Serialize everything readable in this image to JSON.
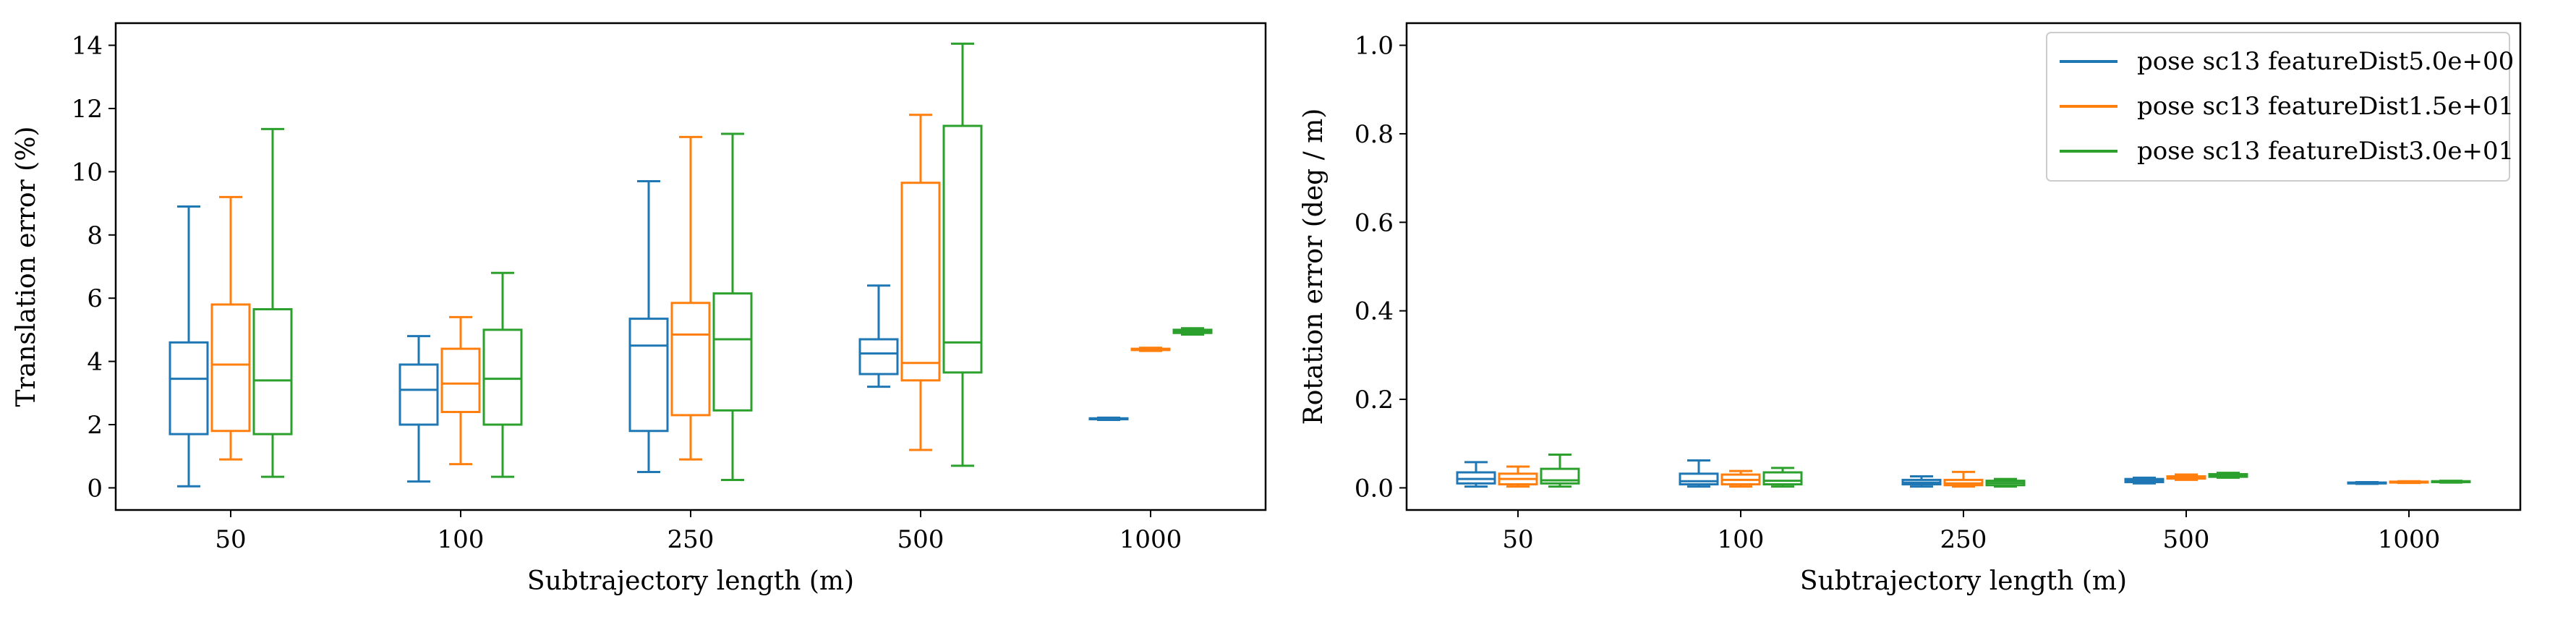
{
  "chart_data": [
    {
      "type": "box",
      "xlabel": "Subtrajectory length (m)",
      "ylabel": "Translation error (%)",
      "categories": [
        "50",
        "100",
        "250",
        "500",
        "1000"
      ],
      "ylim": [
        -0.7,
        14.7
      ],
      "yticks": [
        0,
        2,
        4,
        6,
        8,
        10,
        12,
        14
      ],
      "grid": false,
      "series": [
        {
          "color": "#1f77b4",
          "boxes": [
            {
              "whislo": 0.05,
              "q1": 1.7,
              "med": 3.45,
              "q3": 4.6,
              "whishi": 8.9
            },
            {
              "whislo": 0.2,
              "q1": 2.0,
              "med": 3.1,
              "q3": 3.9,
              "whishi": 4.8
            },
            {
              "whislo": 0.5,
              "q1": 1.8,
              "med": 4.5,
              "q3": 5.35,
              "whishi": 9.7
            },
            {
              "whislo": 3.2,
              "q1": 3.6,
              "med": 4.25,
              "q3": 4.7,
              "whishi": 6.4
            },
            {
              "whislo": 2.15,
              "q1": 2.17,
              "med": 2.18,
              "q3": 2.2,
              "whishi": 2.22
            }
          ]
        },
        {
          "color": "#ff7f0e",
          "boxes": [
            {
              "whislo": 0.9,
              "q1": 1.8,
              "med": 3.9,
              "q3": 5.8,
              "whishi": 9.2
            },
            {
              "whislo": 0.75,
              "q1": 2.4,
              "med": 3.3,
              "q3": 4.4,
              "whishi": 5.4
            },
            {
              "whislo": 0.9,
              "q1": 2.3,
              "med": 4.85,
              "q3": 5.85,
              "whishi": 11.1
            },
            {
              "whislo": 1.2,
              "q1": 3.4,
              "med": 3.95,
              "q3": 9.65,
              "whishi": 11.8
            },
            {
              "whislo": 4.33,
              "q1": 4.36,
              "med": 4.38,
              "q3": 4.4,
              "whishi": 4.43
            }
          ]
        },
        {
          "color": "#2ca02c",
          "boxes": [
            {
              "whislo": 0.35,
              "q1": 1.7,
              "med": 3.4,
              "q3": 5.65,
              "whishi": 11.35
            },
            {
              "whislo": 0.35,
              "q1": 2.0,
              "med": 3.45,
              "q3": 5.0,
              "whishi": 6.8
            },
            {
              "whislo": 0.25,
              "q1": 2.45,
              "med": 4.7,
              "q3": 6.15,
              "whishi": 11.2
            },
            {
              "whislo": 0.7,
              "q1": 3.65,
              "med": 4.6,
              "q3": 11.45,
              "whishi": 14.05
            },
            {
              "whislo": 4.85,
              "q1": 4.9,
              "med": 4.95,
              "q3": 5.0,
              "whishi": 5.05
            }
          ]
        }
      ]
    },
    {
      "type": "box",
      "xlabel": "Subtrajectory length (m)",
      "ylabel": "Rotation error (deg / m)",
      "categories": [
        "50",
        "100",
        "250",
        "500",
        "1000"
      ],
      "ylim": [
        -0.05,
        1.05
      ],
      "yticks": [
        0.0,
        0.2,
        0.4,
        0.6,
        0.8,
        1.0
      ],
      "grid": false,
      "legend": "upper right",
      "series": [
        {
          "name": "pose sc13 featureDist5.0e+00",
          "color": "#1f77b4",
          "boxes": [
            {
              "whislo": 0.003,
              "q1": 0.01,
              "med": 0.02,
              "q3": 0.035,
              "whishi": 0.058
            },
            {
              "whislo": 0.003,
              "q1": 0.008,
              "med": 0.015,
              "q3": 0.032,
              "whishi": 0.062
            },
            {
              "whislo": 0.003,
              "q1": 0.008,
              "med": 0.012,
              "q3": 0.018,
              "whishi": 0.026
            },
            {
              "whislo": 0.01,
              "q1": 0.013,
              "med": 0.016,
              "q3": 0.02,
              "whishi": 0.023
            },
            {
              "whislo": 0.009,
              "q1": 0.01,
              "med": 0.011,
              "q3": 0.012,
              "whishi": 0.013
            }
          ]
        },
        {
          "name": "pose sc13 featureDist1.5e+01",
          "color": "#ff7f0e",
          "boxes": [
            {
              "whislo": 0.003,
              "q1": 0.008,
              "med": 0.02,
              "q3": 0.032,
              "whishi": 0.048
            },
            {
              "whislo": 0.003,
              "q1": 0.008,
              "med": 0.018,
              "q3": 0.03,
              "whishi": 0.038
            },
            {
              "whislo": 0.003,
              "q1": 0.006,
              "med": 0.01,
              "q3": 0.018,
              "whishi": 0.036
            },
            {
              "whislo": 0.018,
              "q1": 0.021,
              "med": 0.023,
              "q3": 0.026,
              "whishi": 0.03
            },
            {
              "whislo": 0.011,
              "q1": 0.012,
              "med": 0.013,
              "q3": 0.014,
              "whishi": 0.015
            }
          ]
        },
        {
          "name": "pose sc13 featureDist3.0e+01",
          "color": "#2ca02c",
          "boxes": [
            {
              "whislo": 0.003,
              "q1": 0.01,
              "med": 0.017,
              "q3": 0.043,
              "whishi": 0.075
            },
            {
              "whislo": 0.003,
              "q1": 0.008,
              "med": 0.016,
              "q3": 0.035,
              "whishi": 0.045
            },
            {
              "whislo": 0.003,
              "q1": 0.006,
              "med": 0.011,
              "q3": 0.016,
              "whishi": 0.02
            },
            {
              "whislo": 0.023,
              "q1": 0.025,
              "med": 0.028,
              "q3": 0.031,
              "whishi": 0.034
            },
            {
              "whislo": 0.012,
              "q1": 0.013,
              "med": 0.014,
              "q3": 0.015,
              "whishi": 0.016
            }
          ]
        }
      ]
    }
  ]
}
